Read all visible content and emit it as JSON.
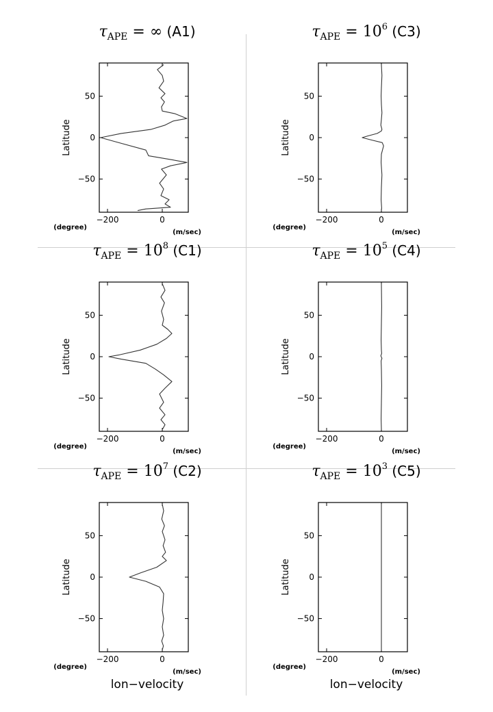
{
  "chart_data": [
    {
      "type": "line",
      "panel_title": {
        "symbol": "τ",
        "subscript": "APE",
        "relation": " = ",
        "value": "∞",
        "value_sup": "",
        "case": " (A1)"
      },
      "ylabel": "Latitude",
      "xlabel": "",
      "xunit": "(m/sec)",
      "yunit": "(degree)",
      "xlim": [
        -230,
        95
      ],
      "ylim": [
        -90,
        90
      ],
      "xticks": [
        {
          "v": -200,
          "label": "−200"
        },
        {
          "v": 0,
          "label": "0"
        }
      ],
      "yticks": [
        {
          "v": 50,
          "label": "50"
        },
        {
          "v": 0,
          "label": "0"
        },
        {
          "v": -50,
          "label": "−50"
        }
      ],
      "series": [
        {
          "x": [
            5,
            -18,
            0,
            5,
            -12,
            10,
            -5,
            8,
            -3,
            0,
            45,
            90,
            40,
            10,
            -40,
            -150,
            -225,
            -170,
            -60,
            -50,
            40,
            90,
            30,
            -3,
            15,
            -10,
            5,
            -5,
            25,
            10,
            30,
            -60,
            -90
          ],
          "y": [
            88,
            82,
            75,
            68,
            60,
            53,
            48,
            43,
            37,
            32,
            29,
            23,
            20,
            15,
            10,
            5,
            0,
            -5,
            -15,
            -22,
            -27,
            -30,
            -34,
            -38,
            -45,
            -55,
            -62,
            -70,
            -75,
            -80,
            -84,
            -86,
            -88
          ]
        }
      ]
    },
    {
      "type": "line",
      "panel_title": {
        "symbol": "τ",
        "subscript": "APE",
        "relation": " = ",
        "value": "10",
        "value_sup": "6",
        "case": " (C3)"
      },
      "ylabel": "Latitude",
      "xlabel": "",
      "xunit": "(m/sec)",
      "yunit": "(degree)",
      "xlim": [
        -230,
        95
      ],
      "ylim": [
        -90,
        90
      ],
      "xticks": [
        {
          "v": -200,
          "label": "−200"
        },
        {
          "v": 0,
          "label": "0"
        }
      ],
      "yticks": [
        {
          "v": 50,
          "label": "50"
        },
        {
          "v": 0,
          "label": "0"
        },
        {
          "v": -50,
          "label": "−50"
        }
      ],
      "series": [
        {
          "x": [
            0,
            2,
            0,
            -1,
            0,
            2,
            0,
            -2,
            2,
            0,
            -15,
            -50,
            -70,
            -35,
            3,
            8,
            0,
            -1,
            2,
            0,
            -1,
            1,
            0
          ],
          "y": [
            88,
            75,
            60,
            50,
            40,
            30,
            22,
            15,
            10,
            8,
            5,
            2,
            0,
            -3,
            -6,
            -10,
            -20,
            -30,
            -45,
            -60,
            -75,
            -85,
            -88
          ]
        }
      ]
    },
    {
      "type": "line",
      "panel_title": {
        "symbol": "τ",
        "subscript": "APE",
        "relation": " = ",
        "value": "10",
        "value_sup": "8",
        "case": " (C1)"
      },
      "ylabel": "Latitude",
      "xlabel": "",
      "xunit": "(m/sec)",
      "yunit": "(degree)",
      "xlim": [
        -230,
        95
      ],
      "ylim": [
        -90,
        90
      ],
      "xticks": [
        {
          "v": -200,
          "label": "−200"
        },
        {
          "v": 0,
          "label": "0"
        }
      ],
      "yticks": [
        {
          "v": 50,
          "label": "50"
        },
        {
          "v": 0,
          "label": "0"
        },
        {
          "v": -50,
          "label": "−50"
        }
      ],
      "series": [
        {
          "x": [
            0,
            10,
            -5,
            8,
            -3,
            5,
            0,
            20,
            35,
            15,
            -20,
            -80,
            -160,
            -195,
            -150,
            -60,
            -25,
            5,
            35,
            10,
            -10,
            5,
            -10,
            10,
            -5,
            10,
            0
          ],
          "y": [
            88,
            80,
            72,
            65,
            55,
            45,
            38,
            33,
            28,
            22,
            15,
            8,
            2,
            0,
            -3,
            -8,
            -15,
            -22,
            -30,
            -38,
            -45,
            -55,
            -62,
            -70,
            -76,
            -82,
            -88
          ]
        }
      ]
    },
    {
      "type": "line",
      "panel_title": {
        "symbol": "τ",
        "subscript": "APE",
        "relation": " = ",
        "value": "10",
        "value_sup": "5",
        "case": " (C4)"
      },
      "ylabel": "Latitude",
      "xlabel": "",
      "xunit": "(m/sec)",
      "yunit": "(degree)",
      "xlim": [
        -230,
        95
      ],
      "ylim": [
        -90,
        90
      ],
      "xticks": [
        {
          "v": -200,
          "label": "−200"
        },
        {
          "v": 0,
          "label": "0"
        }
      ],
      "yticks": [
        {
          "v": 50,
          "label": "50"
        },
        {
          "v": 0,
          "label": "0"
        },
        {
          "v": -50,
          "label": "−50"
        }
      ],
      "series": [
        {
          "x": [
            0,
            1,
            0,
            -1,
            0,
            1,
            -2,
            2,
            -1,
            0,
            1,
            0,
            -1,
            0
          ],
          "y": [
            88,
            60,
            40,
            20,
            8,
            4,
            1,
            -2,
            -5,
            -15,
            -35,
            -55,
            -75,
            -88
          ]
        }
      ]
    },
    {
      "type": "line",
      "panel_title": {
        "symbol": "τ",
        "subscript": "APE",
        "relation": " = ",
        "value": "10",
        "value_sup": "7",
        "case": " (C2)"
      },
      "ylabel": "Latitude",
      "xlabel": "lon−velocity",
      "xunit": "(m/sec)",
      "yunit": "(degree)",
      "xlim": [
        -230,
        95
      ],
      "ylim": [
        -90,
        90
      ],
      "xticks": [
        {
          "v": -200,
          "label": "−200"
        },
        {
          "v": 0,
          "label": "0"
        }
      ],
      "yticks": [
        {
          "v": 50,
          "label": "50"
        },
        {
          "v": 0,
          "label": "0"
        },
        {
          "v": -50,
          "label": "−50"
        }
      ],
      "series": [
        {
          "x": [
            0,
            5,
            -2,
            8,
            0,
            10,
            3,
            12,
            0,
            15,
            -20,
            -80,
            -120,
            -60,
            -10,
            5,
            3,
            0,
            5,
            0,
            5,
            -2,
            4,
            0
          ],
          "y": [
            88,
            80,
            70,
            62,
            55,
            45,
            38,
            30,
            25,
            20,
            12,
            5,
            0,
            -5,
            -12,
            -20,
            -30,
            -40,
            -50,
            -60,
            -70,
            -77,
            -83,
            -88
          ]
        }
      ]
    },
    {
      "type": "line",
      "panel_title": {
        "symbol": "τ",
        "subscript": "APE",
        "relation": " = ",
        "value": "10",
        "value_sup": "3",
        "case": " (C5)"
      },
      "ylabel": "Latitude",
      "xlabel": "lon−velocity",
      "xunit": "(m/sec)",
      "yunit": "(degree)",
      "xlim": [
        -230,
        95
      ],
      "ylim": [
        -90,
        90
      ],
      "xticks": [
        {
          "v": -200,
          "label": "−200"
        },
        {
          "v": 0,
          "label": "0"
        }
      ],
      "yticks": [
        {
          "v": 50,
          "label": "50"
        },
        {
          "v": 0,
          "label": "0"
        },
        {
          "v": -50,
          "label": "−50"
        }
      ],
      "series": [
        {
          "x": [
            0,
            0
          ],
          "y": [
            88,
            -88
          ]
        }
      ]
    }
  ]
}
